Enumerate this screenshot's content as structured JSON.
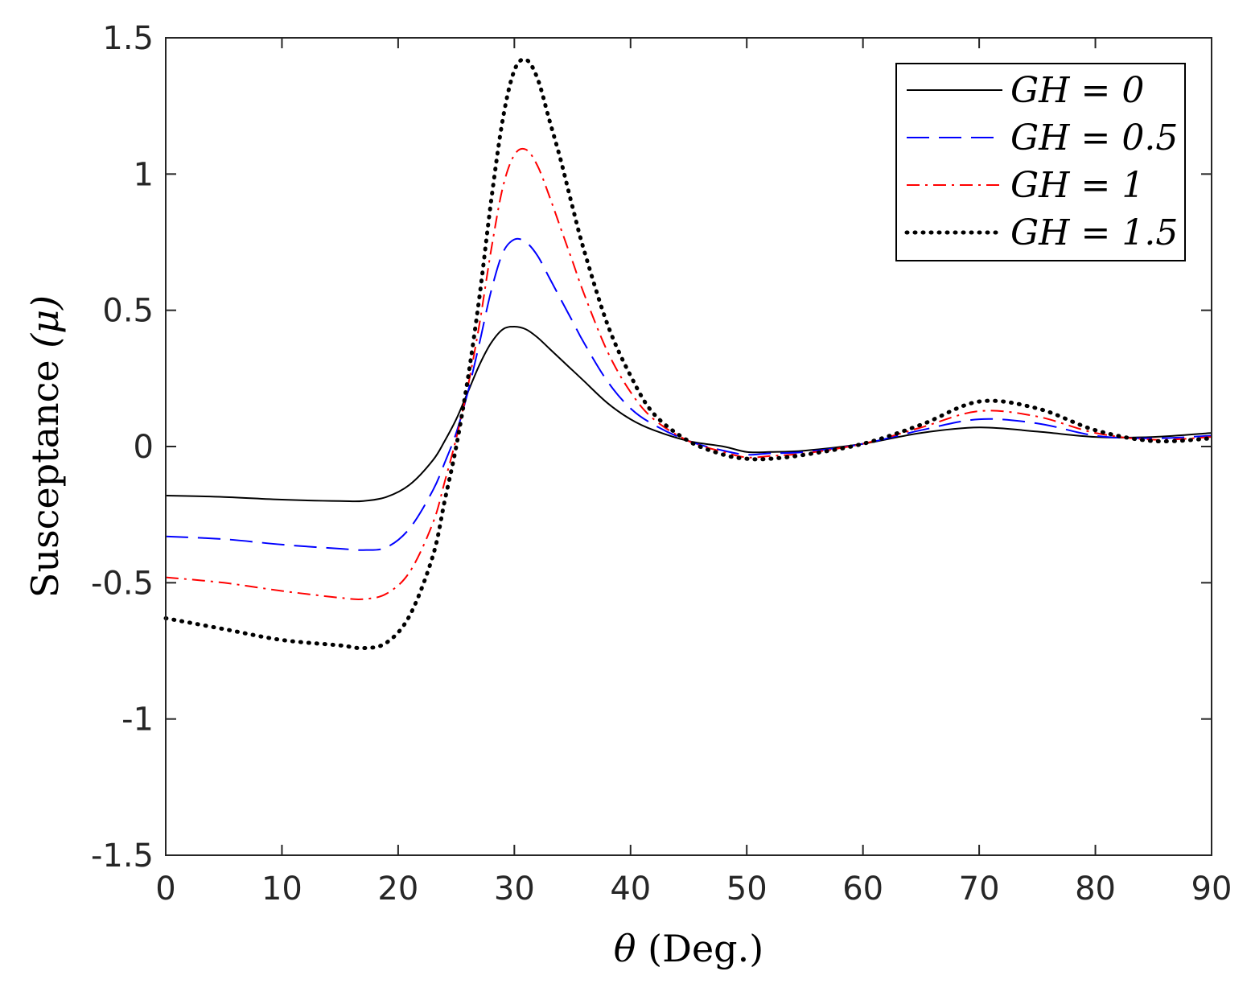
{
  "chart_data": {
    "type": "line",
    "title": "",
    "xlabel": "θ (Deg.)",
    "xlabel_symbol": "θ",
    "xlabel_unit": "(Deg.)",
    "ylabel": "Susceptance (μ)",
    "ylabel_text": "Susceptance",
    "ylabel_symbol": "(μ)",
    "xlim": [
      0,
      90
    ],
    "ylim": [
      -1.5,
      1.5
    ],
    "xticks": [
      0,
      10,
      20,
      30,
      40,
      50,
      60,
      70,
      80,
      90
    ],
    "xtick_labels": [
      "0",
      "10",
      "20",
      "30",
      "40",
      "50",
      "60",
      "70",
      "80",
      "90"
    ],
    "yticks": [
      -1.5,
      -1,
      -0.5,
      0,
      0.5,
      1,
      1.5
    ],
    "ytick_labels": [
      "-1.5",
      "-1",
      "-0.5",
      "0",
      "0.5",
      "1",
      "1.5"
    ],
    "grid": false,
    "legend_position": "top-right",
    "x": [
      0,
      5,
      10,
      15,
      17,
      19,
      21,
      23,
      24,
      25,
      26,
      27,
      28,
      29,
      30,
      31,
      32,
      33,
      34,
      35,
      36,
      38,
      40,
      42,
      45,
      48,
      50,
      52,
      55,
      60,
      65,
      70,
      75,
      80,
      85,
      90
    ],
    "series": [
      {
        "name": "GH = 0",
        "label": "GH = 0",
        "color": "#000000",
        "style": "solid",
        "values": [
          -0.18,
          -0.185,
          -0.195,
          -0.2,
          -0.2,
          -0.185,
          -0.14,
          -0.05,
          0.02,
          0.1,
          0.2,
          0.3,
          0.38,
          0.43,
          0.44,
          0.43,
          0.4,
          0.36,
          0.32,
          0.28,
          0.24,
          0.16,
          0.1,
          0.06,
          0.02,
          0.0,
          -0.02,
          -0.02,
          -0.015,
          0.01,
          0.05,
          0.07,
          0.055,
          0.035,
          0.035,
          0.05
        ]
      },
      {
        "name": "GH = 0.5",
        "label": "GH = 0.5",
        "color": "#0000ff",
        "style": "dashed",
        "values": [
          -0.33,
          -0.34,
          -0.36,
          -0.375,
          -0.38,
          -0.37,
          -0.3,
          -0.16,
          -0.06,
          0.05,
          0.2,
          0.38,
          0.57,
          0.71,
          0.76,
          0.75,
          0.7,
          0.62,
          0.54,
          0.46,
          0.38,
          0.24,
          0.14,
          0.08,
          0.02,
          -0.015,
          -0.03,
          -0.025,
          -0.02,
          0.01,
          0.06,
          0.1,
          0.085,
          0.04,
          0.03,
          0.04
        ]
      },
      {
        "name": "GH = 1",
        "label": "GH = 1",
        "color": "#ff0000",
        "style": "dashdot",
        "values": [
          -0.48,
          -0.5,
          -0.53,
          -0.555,
          -0.56,
          -0.54,
          -0.46,
          -0.28,
          -0.13,
          0.03,
          0.22,
          0.45,
          0.72,
          0.95,
          1.07,
          1.09,
          1.03,
          0.92,
          0.8,
          0.68,
          0.56,
          0.35,
          0.2,
          0.1,
          0.02,
          -0.02,
          -0.04,
          -0.035,
          -0.025,
          0.01,
          0.07,
          0.13,
          0.11,
          0.05,
          0.025,
          0.035
        ]
      },
      {
        "name": "GH = 1.5",
        "label": "GH = 1.5",
        "color": "#000000",
        "style": "dotted",
        "values": [
          -0.63,
          -0.67,
          -0.71,
          -0.73,
          -0.74,
          -0.72,
          -0.62,
          -0.4,
          -0.2,
          0.0,
          0.25,
          0.55,
          0.9,
          1.2,
          1.38,
          1.42,
          1.35,
          1.2,
          1.05,
          0.88,
          0.72,
          0.45,
          0.26,
          0.12,
          0.02,
          -0.03,
          -0.045,
          -0.045,
          -0.03,
          0.01,
          0.08,
          0.165,
          0.14,
          0.06,
          0.02,
          0.03
        ]
      }
    ]
  }
}
